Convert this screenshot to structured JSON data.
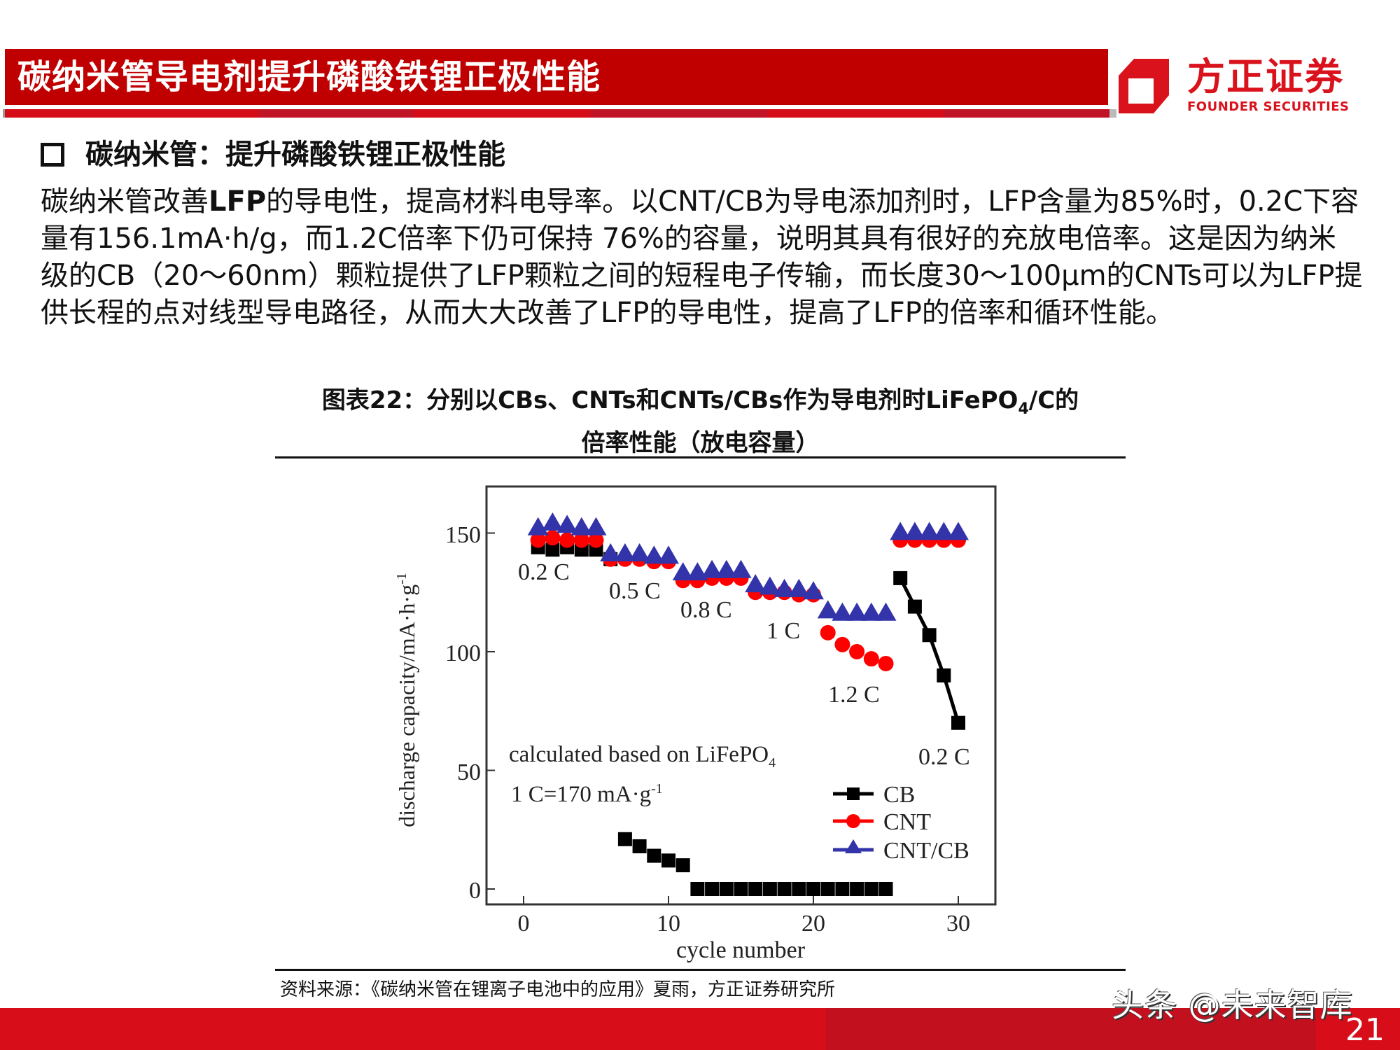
{
  "header": {
    "title": "碳纳米管导电剂提升磷酸铁锂正极性能",
    "logo_cn": "方正证券",
    "logo_en": "FOUNDER SECURITIES"
  },
  "section": {
    "heading": "碳纳米管：提升磷酸铁锂正极性能",
    "body_parts": {
      "p1": "碳纳米管改善",
      "p1_bold": "LFP",
      "p2": "的导电性，提高材料电导率。以CNT/CB为导电添加剂时，LFP含量为85%时，0.2C下容量有156.1mA·h/g，而1.2C倍率下仍可保持 76%的容量，说明其具有很好的充放电倍率。这是因为纳米级的CB（20～60nm）颗粒提供了LFP颗粒之间的短程电子传输，而长度30～100μm的CNTs可以为LFP提供长程的点对线型导电路径，从而大大改善了LFP的导电性，提高了LFP的倍率和循环性能。"
    }
  },
  "figure": {
    "caption_line1_a": "图表22：分别以CBs、CNTs和CNTs/CBs作为导电剂时LiFePO",
    "caption_line1_sub": "4",
    "caption_line1_b": "/C的",
    "caption_line2": "倍率性能（放电容量）",
    "source": "资料来源：《碳纳米管在锂离子电池中的应用》夏雨，方正证券研究所"
  },
  "footer": {
    "watermark": "头条 @未来智库",
    "page_number": "21"
  },
  "chart_data": {
    "type": "scatter",
    "title": "",
    "xlabel": "cycle number",
    "ylabel": "discharge capacity/mA·h·g⁻¹",
    "xlim": [
      -2,
      33
    ],
    "ylim": [
      -8,
      165
    ],
    "xticks": [
      0,
      10,
      20,
      30
    ],
    "yticks": [
      0,
      50,
      100,
      150
    ],
    "grid": false,
    "legend_position": "lower right (inside)",
    "legend": [
      "CB",
      "CNT",
      "CNT/CB"
    ],
    "annotations": [
      {
        "text": "0.2 C",
        "x": 1.7,
        "y": 133
      },
      {
        "text": "0.5 C",
        "x": 7.8,
        "y": 126
      },
      {
        "text": "0.8 C",
        "x": 12.7,
        "y": 118
      },
      {
        "text": "1 C",
        "x": 18.3,
        "y": 109
      },
      {
        "text": "1.2 C",
        "x": 23.2,
        "y": 82
      },
      {
        "text": "0.2 C",
        "x": 29,
        "y": 53
      },
      {
        "text": "calculated based on LiFePO₄",
        "x": 0,
        "y": 53
      },
      {
        "text": "1 C=170 mA·g⁻¹",
        "x": 0,
        "y": 37
      }
    ],
    "series": [
      {
        "name": "CB",
        "color": "#000000",
        "marker": "square",
        "x": [
          1,
          2,
          3,
          4,
          5,
          6,
          7,
          8,
          9,
          10,
          11,
          12,
          13,
          14,
          15,
          16,
          17,
          18,
          19,
          20,
          21,
          22,
          23,
          24,
          25,
          26,
          27,
          28,
          29,
          30
        ],
        "y": [
          144,
          143,
          144,
          143,
          143,
          139,
          21,
          18,
          14,
          12,
          10,
          0,
          0,
          0,
          0,
          0,
          0,
          0,
          0,
          0,
          0,
          0,
          0,
          0,
          0,
          131,
          119,
          107,
          90,
          70
        ]
      },
      {
        "name": "CNT",
        "color": "#ff0000",
        "marker": "circle",
        "x": [
          1,
          2,
          3,
          4,
          5,
          6,
          7,
          8,
          9,
          10,
          11,
          12,
          13,
          14,
          15,
          16,
          17,
          18,
          19,
          20,
          21,
          22,
          23,
          24,
          25,
          26,
          27,
          28,
          29,
          30
        ],
        "y": [
          147,
          148,
          147,
          147,
          147,
          139,
          139,
          139,
          138,
          138,
          130,
          130,
          131,
          131,
          131,
          125,
          125,
          125,
          124,
          124,
          108,
          103,
          100,
          97,
          95,
          147,
          147,
          147,
          147,
          147
        ]
      },
      {
        "name": "CNT/CB",
        "color": "#3333aa",
        "marker": "triangle",
        "x": [
          1,
          2,
          3,
          4,
          5,
          6,
          7,
          8,
          9,
          10,
          11,
          12,
          13,
          14,
          15,
          16,
          17,
          18,
          19,
          20,
          21,
          22,
          23,
          24,
          25,
          26,
          27,
          28,
          29,
          30
        ],
        "y": [
          152,
          154,
          153,
          152,
          152,
          141,
          141,
          141,
          140,
          140,
          133,
          133,
          134,
          134,
          134,
          128,
          127,
          126,
          126,
          125,
          117,
          116,
          116,
          116,
          116,
          150,
          150,
          150,
          150,
          150
        ]
      }
    ]
  },
  "chart_text": {
    "ylabel": "discharge capacity/mA·h·g",
    "ylabel_sup": "-1",
    "xlabel": "cycle number",
    "note1_a": "calculated based on LiFePO",
    "note1_sub": "4",
    "note2_a": "1 C=170 mA·g",
    "note2_sup": "-1",
    "rate_labels": [
      "0.2 C",
      "0.5 C",
      "0.8 C",
      "1 C",
      "1.2 C",
      "0.2 C"
    ],
    "xticks": [
      "0",
      "10",
      "20",
      "30"
    ],
    "yticks": [
      "0",
      "50",
      "100",
      "150"
    ],
    "legend": [
      "CB",
      "CNT",
      "CNT/CB"
    ]
  }
}
